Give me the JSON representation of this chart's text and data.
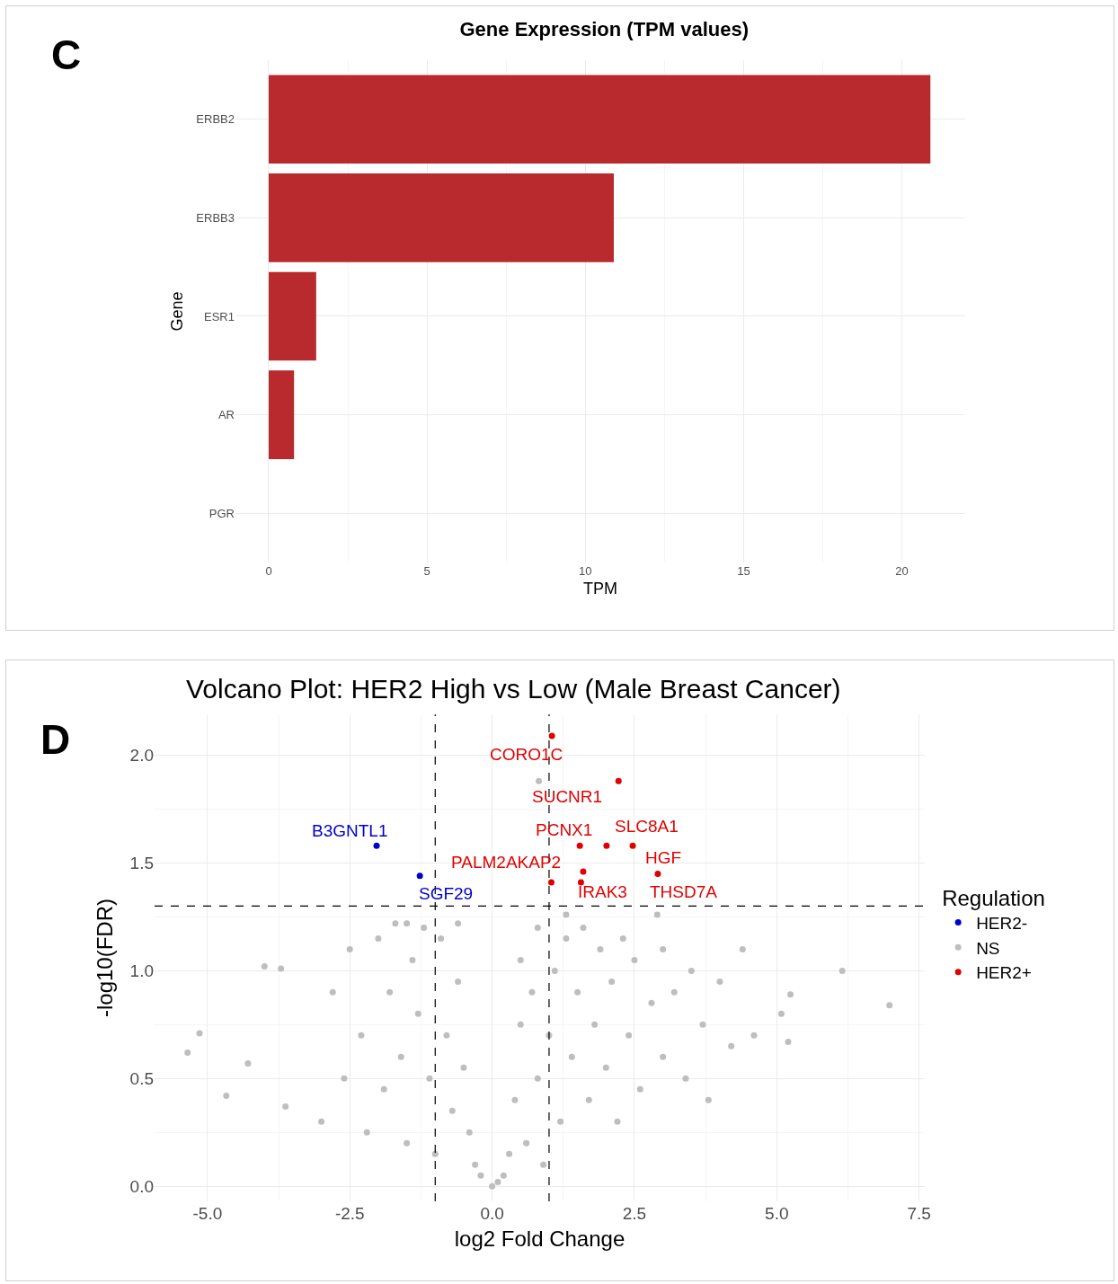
{
  "chart_data": [
    {
      "type": "bar",
      "orientation": "horizontal",
      "title": "Gene Expression (TPM values)",
      "xlabel": "TPM",
      "ylabel": "Gene",
      "annotations": [
        "C"
      ],
      "categories": [
        "ERBB2",
        "ERBB3",
        "ESR1",
        "AR",
        "PGR"
      ],
      "values": [
        20.9,
        10.9,
        1.5,
        0.8,
        0
      ],
      "color": "#b82a2d",
      "xlim": [
        -1.05,
        22
      ],
      "xticks": [
        0,
        5,
        10,
        15,
        20
      ],
      "grid": true,
      "legend": false
    },
    {
      "type": "scatter",
      "title": "Volcano Plot: HER2 High vs Low (Male Breast Cancer)",
      "xlabel": "log2 Fold Change",
      "ylabel": "-log10(FDR)",
      "legend_title": "Regulation",
      "legend": "right",
      "marker": "circle",
      "grid": true,
      "xlim": [
        -5.93,
        7.6
      ],
      "xticks": [
        {
          "value": -5,
          "label": "-5.0"
        },
        {
          "value": -2.5,
          "label": "-2.5"
        },
        {
          "value": 0,
          "label": "0.0"
        },
        {
          "value": 2.5,
          "label": "2.5"
        },
        {
          "value": 5,
          "label": "5.0"
        },
        {
          "value": 7.5,
          "label": "7.5"
        }
      ],
      "ylim": [
        -0.07,
        2.19
      ],
      "yticks": [
        {
          "value": 0,
          "label": "0.0"
        },
        {
          "value": 0.5,
          "label": "0.5"
        },
        {
          "value": 1,
          "label": "1.0"
        },
        {
          "value": 1.5,
          "label": "1.5"
        },
        {
          "value": 2,
          "label": "2.0"
        }
      ],
      "ref_lines": [
        {
          "axis": "x",
          "value": -1,
          "line_style": "dashed"
        },
        {
          "axis": "x",
          "value": 1,
          "line_style": "dashed"
        },
        {
          "axis": "y",
          "value": 1.3,
          "line_style": "dashed"
        }
      ],
      "series": [
        {
          "name": "HER2-",
          "color": "#0000cc",
          "x": [
            -2.03,
            -1.27
          ],
          "values": [
            1.58,
            1.44
          ]
        },
        {
          "name": "NS",
          "color": "#bebebe",
          "x": [
            -3.0,
            -2.8,
            -2.6,
            -2.5,
            -2.3,
            -2.2,
            -2.0,
            -1.9,
            -1.8,
            -1.7,
            -1.6,
            -1.5,
            -1.4,
            -1.3,
            -1.2,
            -1.1,
            -1.0,
            -0.9,
            -0.8,
            -0.7,
            -0.6,
            -0.5,
            -0.4,
            -0.3,
            -0.2,
            0,
            0.1,
            0.2,
            0.3,
            0.4,
            0.5,
            0.5,
            0.6,
            0.7,
            0.8,
            0.8,
            0.9,
            1.0,
            1.1,
            1.2,
            1.3,
            1.4,
            1.5,
            1.6,
            1.7,
            1.8,
            1.9,
            2.0,
            2.1,
            2.2,
            2.3,
            2.4,
            2.5,
            2.6,
            2.8,
            3.0,
            3.0,
            3.2,
            3.4,
            3.5,
            3.7,
            3.8,
            4.0,
            4.2,
            4.4,
            4.6,
            6.15,
            6.98,
            5.24,
            5.08,
            5.2,
            -5.35,
            -5.14,
            -4.67,
            -4.29,
            -4.0,
            -3.71,
            -3.63,
            0.82,
            -1.5,
            -0.6,
            1.3,
            2.9
          ],
          "values": [
            0.3,
            0.9,
            0.5,
            1.1,
            0.7,
            0.25,
            1.15,
            0.45,
            0.9,
            1.22,
            0.6,
            0.2,
            1.05,
            0.8,
            1.2,
            0.5,
            0.15,
            1.15,
            0.7,
            0.35,
            0.95,
            0.55,
            0.25,
            0.1,
            0.05,
            0,
            0.02,
            0.05,
            0.15,
            0.4,
            0.75,
            1.05,
            0.2,
            0.9,
            1.2,
            0.5,
            0.1,
            0.7,
            1.0,
            0.3,
            1.15,
            0.6,
            0.9,
            1.2,
            0.4,
            0.75,
            1.1,
            0.55,
            0.95,
            0.3,
            1.15,
            0.7,
            1.05,
            0.45,
            0.85,
            1.1,
            0.6,
            0.9,
            0.5,
            1.0,
            0.75,
            0.4,
            0.95,
            0.65,
            1.1,
            0.7,
            1.0,
            0.84,
            0.89,
            0.8,
            0.67,
            0.62,
            0.71,
            0.42,
            0.57,
            1.02,
            1.01,
            0.37,
            1.88,
            1.22,
            1.22,
            1.26,
            1.26
          ]
        },
        {
          "name": "HER2+",
          "color": "#e00000",
          "x": [
            1.05,
            2.22,
            1.54,
            2.01,
            2.47,
            2.91,
            1.6,
            1.56,
            1.04
          ],
          "values": [
            2.09,
            1.88,
            1.58,
            1.58,
            1.58,
            1.45,
            1.46,
            1.41,
            1.41
          ]
        }
      ],
      "annotations": [
        "D",
        {
          "text": "CORO1C",
          "x": 1.05,
          "y": 2.09
        },
        {
          "text": "SUCNR1",
          "x": 2.22,
          "y": 1.88
        },
        {
          "text": "PCNX1",
          "x": 1.54,
          "y": 1.58
        },
        {
          "text": "SLC8A1",
          "x": 2.01,
          "y": 1.58
        },
        {
          "text": "HGF",
          "x": 2.47,
          "y": 1.58
        },
        {
          "text": "PALM2AKAP2",
          "x": 1.04,
          "y": 1.41
        },
        {
          "text": "IRAK3",
          "x": 1.56,
          "y": 1.41
        },
        {
          "text": "THSD7A",
          "x": 2.91,
          "y": 1.45
        },
        {
          "text": "B3GNTL1",
          "x": -2.03,
          "y": 1.58
        },
        {
          "text": "SGF29",
          "x": -1.27,
          "y": 1.44
        }
      ]
    }
  ]
}
